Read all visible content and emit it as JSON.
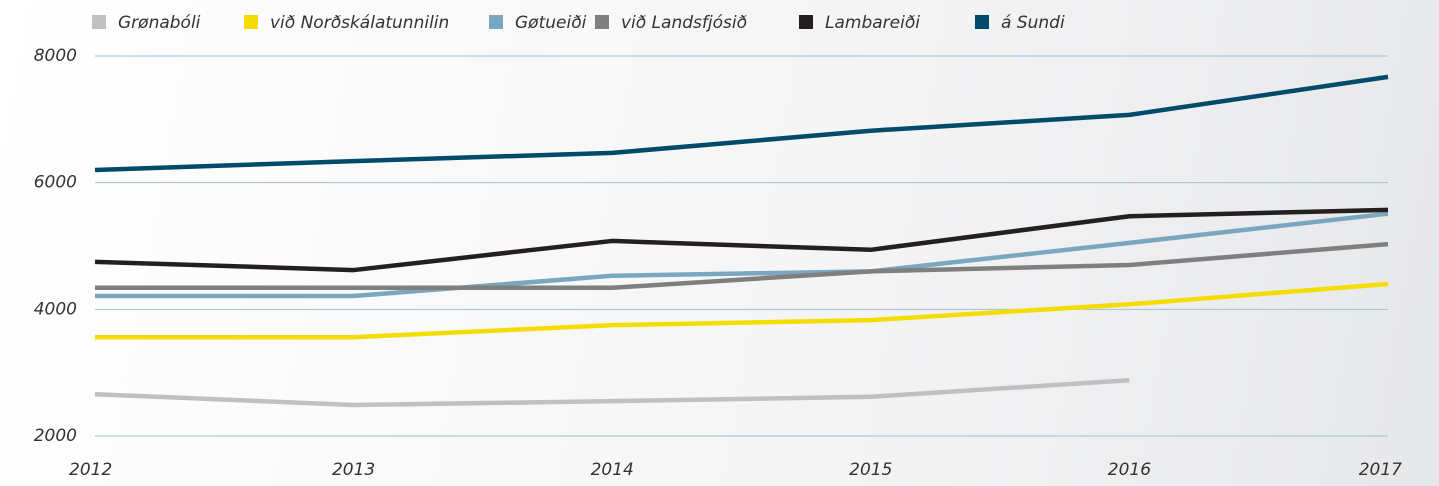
{
  "chart_data": {
    "type": "line",
    "x": [
      2012,
      2013,
      2014,
      2015,
      2016,
      2017
    ],
    "xlim": [
      2012,
      2017
    ],
    "xticks": [
      2012,
      2013,
      2014,
      2015,
      2016,
      2017
    ],
    "ylim": [
      2000,
      8000
    ],
    "yticks": [
      2000,
      4000,
      6000,
      8000
    ],
    "grid": true,
    "legend": "top",
    "series": [
      {
        "name": "Grønabóli",
        "color": "#c0c0c2",
        "values": [
          2660,
          2490,
          2550,
          2620,
          2880,
          null
        ]
      },
      {
        "name": "við Norðskálatunnilin",
        "color": "#f5dc00",
        "values": [
          3560,
          3560,
          3750,
          3830,
          4080,
          4400
        ]
      },
      {
        "name": "Gøtueiði",
        "color": "#7aa7c0",
        "values": [
          4210,
          4210,
          4530,
          4600,
          5050,
          5510
        ]
      },
      {
        "name": "við Landsfjósið",
        "color": "#7f7f80",
        "values": [
          4340,
          4340,
          4340,
          4600,
          4700,
          5030
        ]
      },
      {
        "name": "Lambareiði",
        "color": "#231f20",
        "values": [
          4750,
          4620,
          5080,
          4940,
          5470,
          5570
        ]
      },
      {
        "name": "á Sundi",
        "color": "#004a6a",
        "values": [
          6200,
          6340,
          6470,
          6820,
          7070,
          7670
        ]
      }
    ]
  }
}
